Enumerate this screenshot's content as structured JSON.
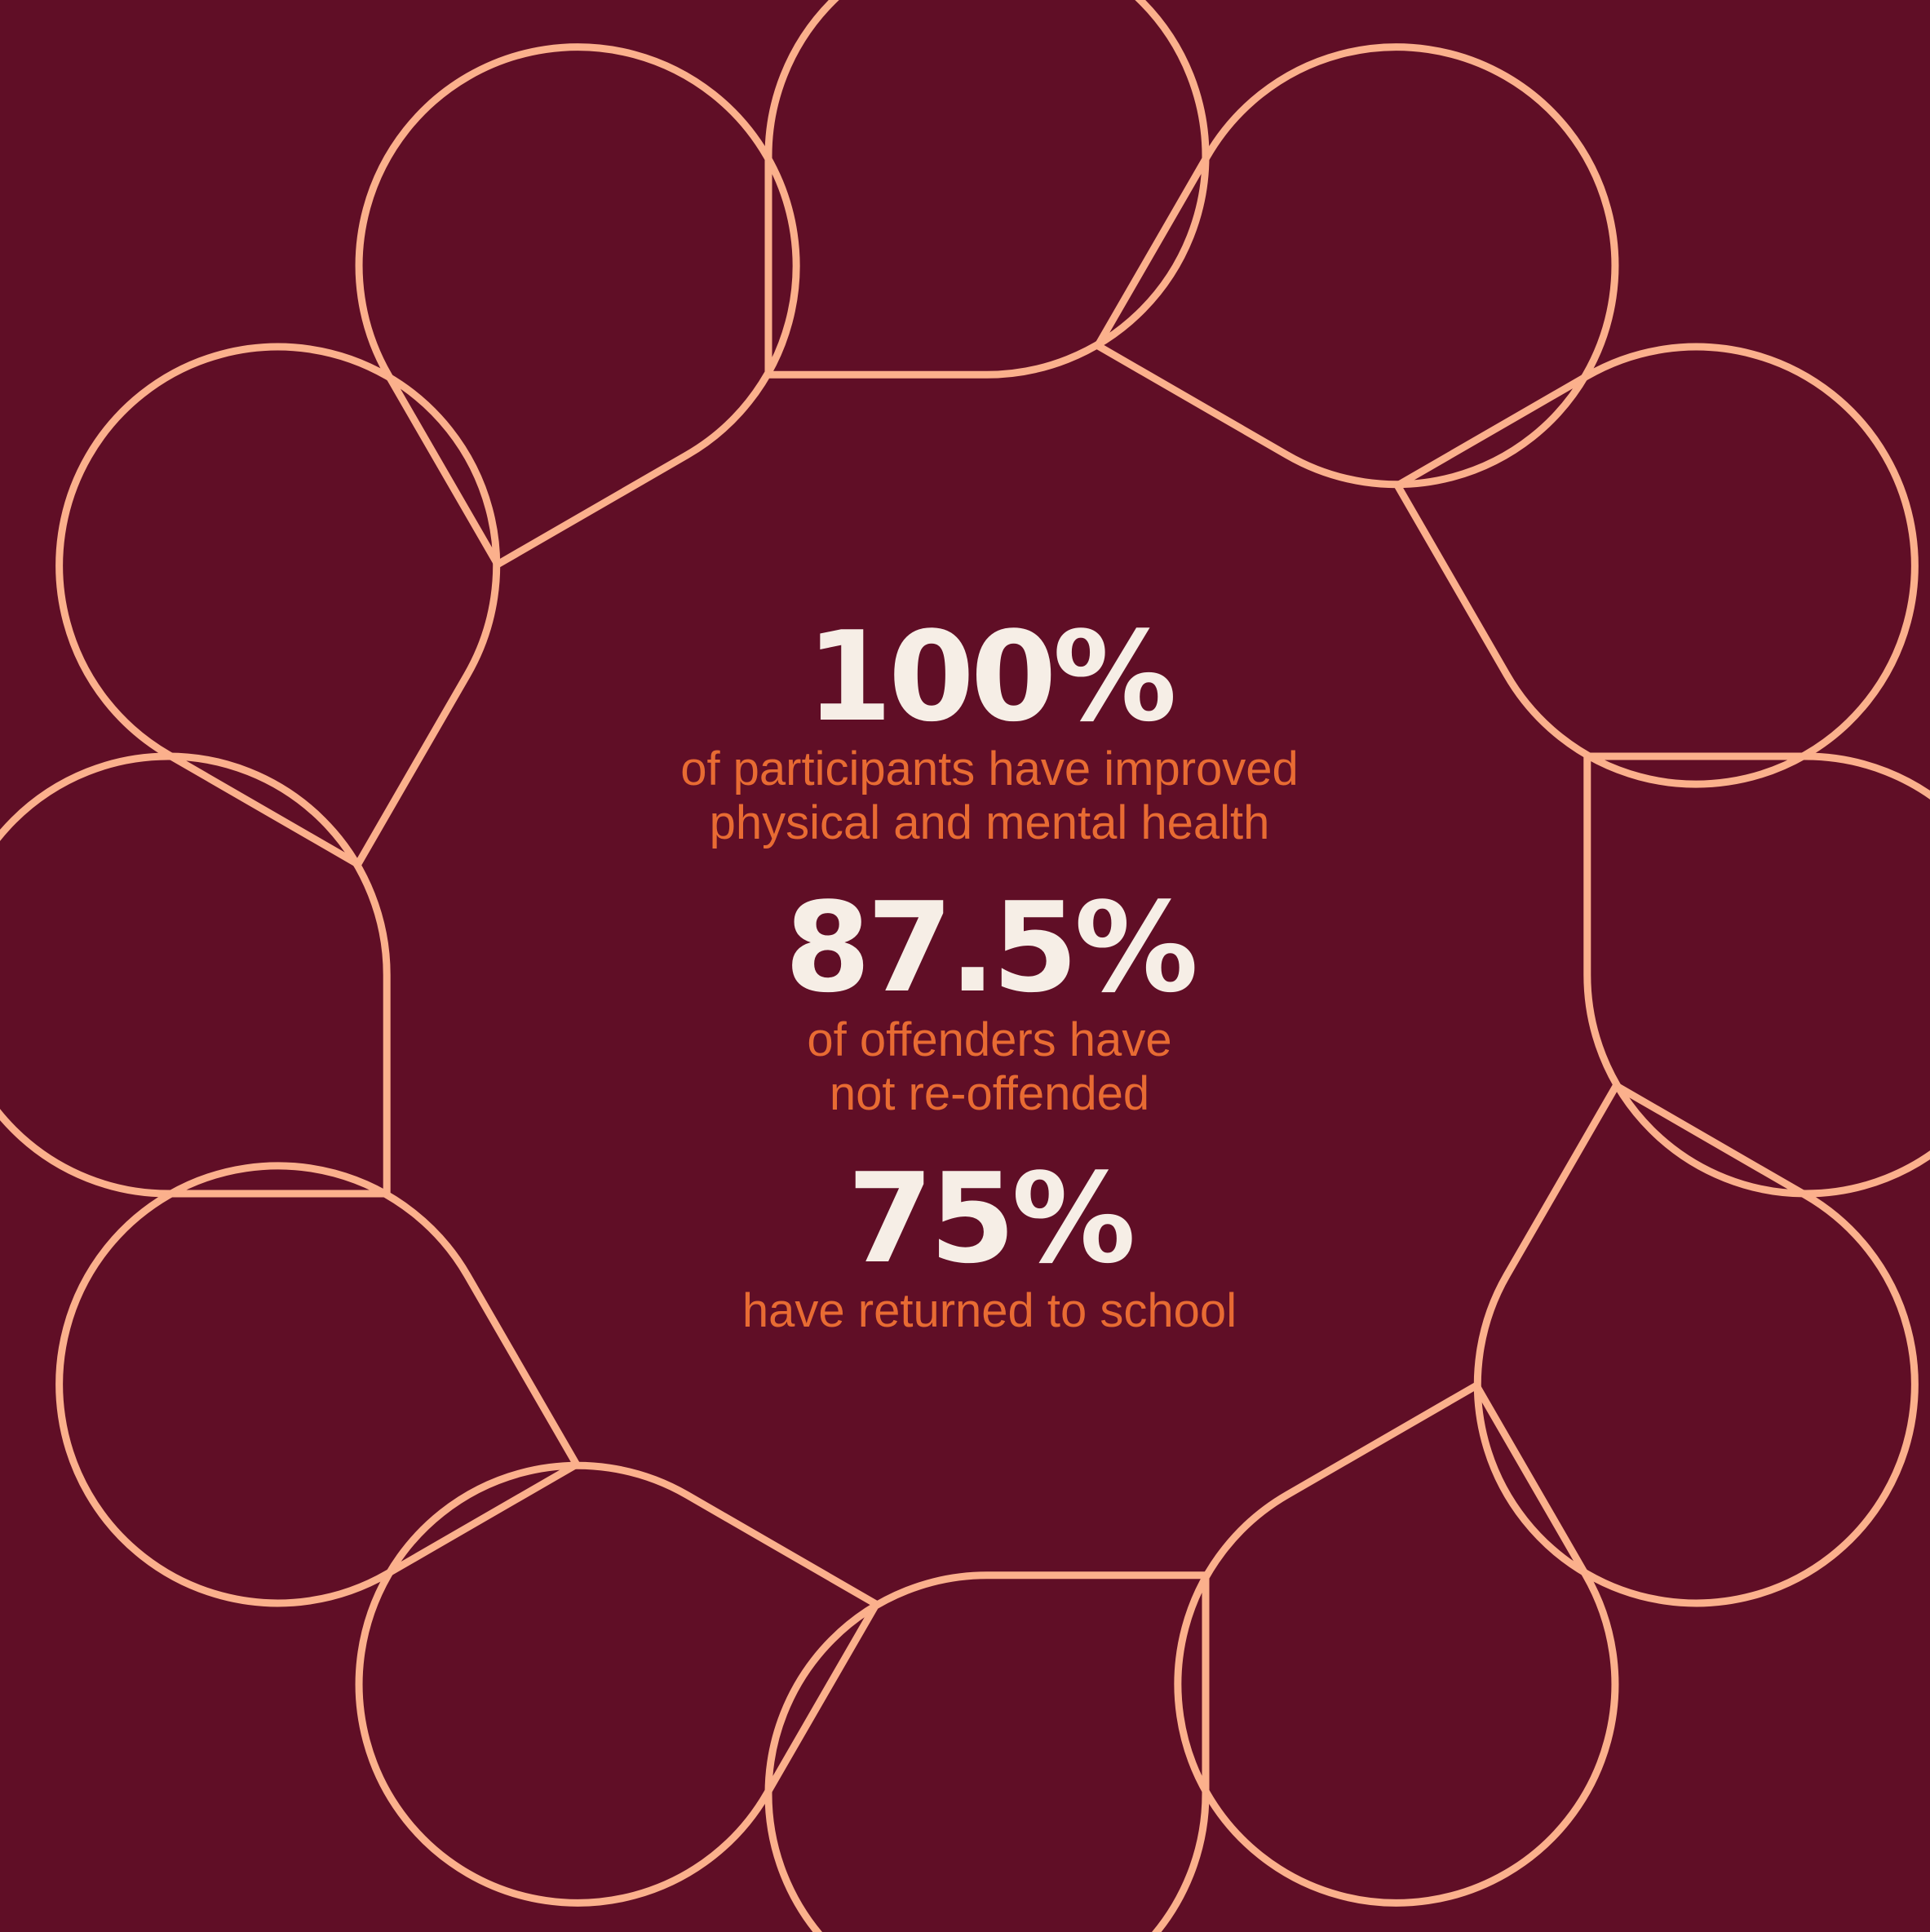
{
  "colors": {
    "background": "#600e26",
    "outline": "#fbb08c",
    "value_text": "#f6eee6",
    "label_text": "#e86b33"
  },
  "stats": [
    {
      "value": "100%",
      "label_line1": "of participants have improved",
      "label_line2": "physical and mental health"
    },
    {
      "value": "87.5%",
      "label_line1": "of offenders have",
      "label_line2": "not re-offended"
    },
    {
      "value": "75%",
      "label_line1": "have returned to school",
      "label_line2": ""
    }
  ]
}
